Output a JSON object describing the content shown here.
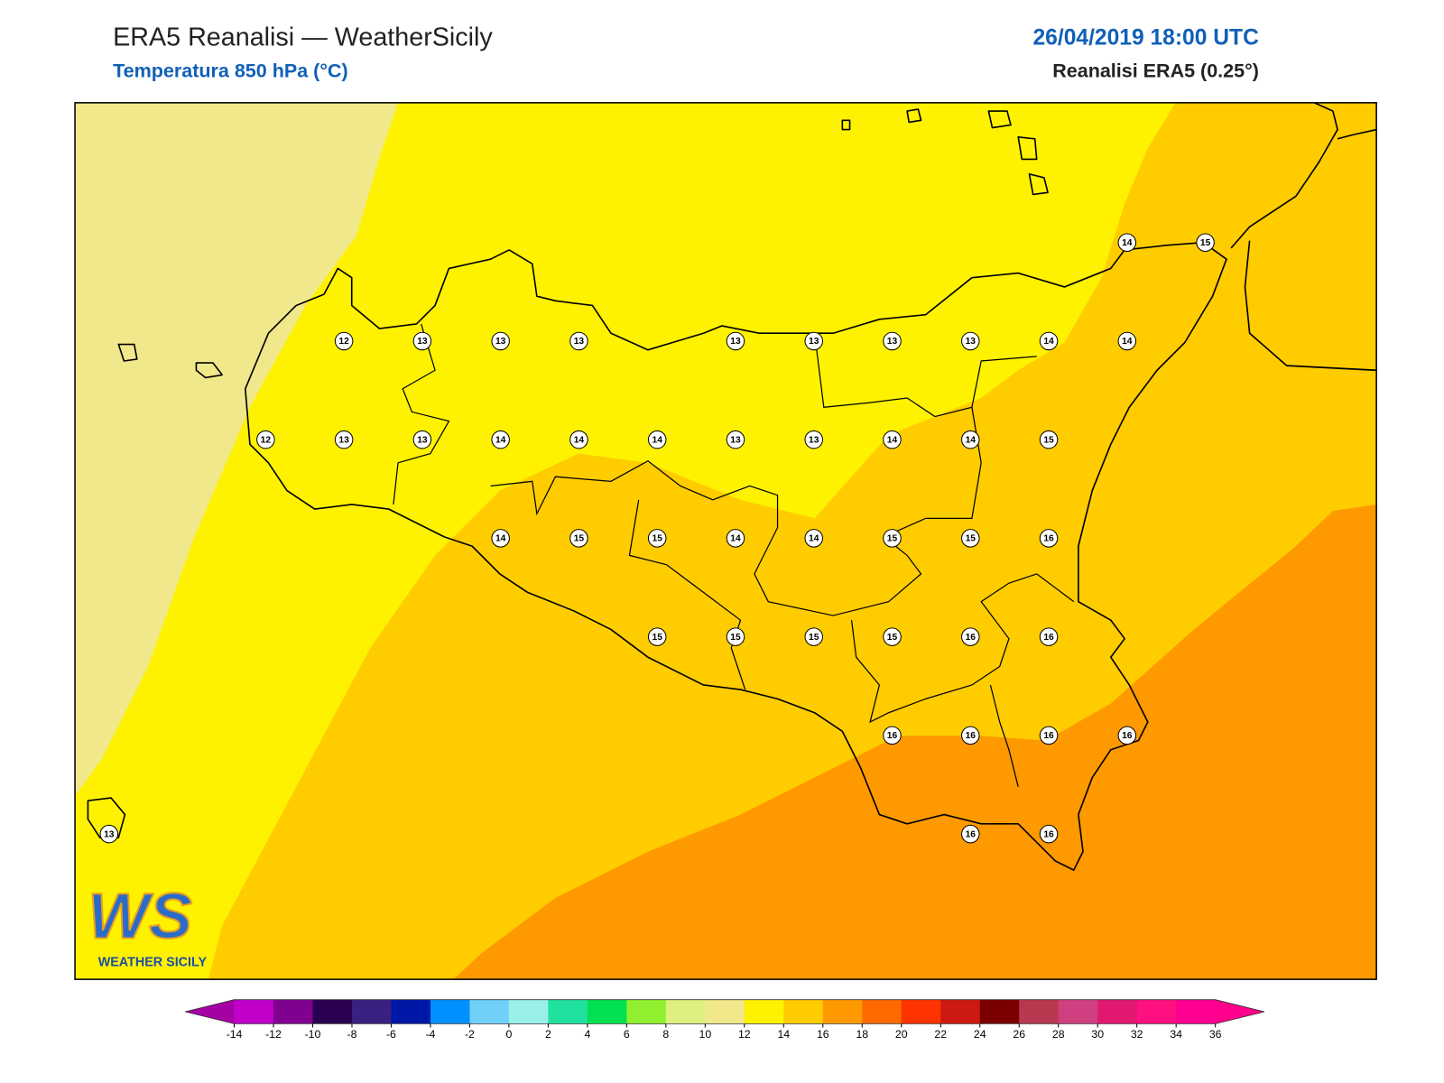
{
  "header": {
    "title": "ERA5 Reanalisi — WeatherSicily",
    "subtitle": "Temperatura 850 hPa (°C)",
    "datetime": "26/04/2019 18:00 UTC",
    "source": "Reanalisi ERA5 (0.25°)"
  },
  "stations": {
    "rows": [
      [
        null,
        null,
        null,
        null,
        null,
        null,
        null,
        null,
        null,
        null,
        null,
        null,
        null,
        14,
        15
      ],
      [
        null,
        null,
        null,
        12,
        13,
        13,
        13,
        null,
        13,
        13,
        13,
        13,
        14,
        14,
        null
      ],
      [
        null,
        null,
        12,
        13,
        13,
        14,
        14,
        14,
        13,
        13,
        14,
        14,
        15,
        null,
        null
      ],
      [
        null,
        null,
        null,
        null,
        null,
        14,
        15,
        15,
        14,
        14,
        15,
        15,
        16,
        null,
        null
      ],
      [
        null,
        null,
        null,
        null,
        null,
        null,
        null,
        15,
        15,
        15,
        15,
        16,
        16,
        null,
        null
      ],
      [
        null,
        null,
        null,
        null,
        null,
        null,
        null,
        null,
        null,
        null,
        16,
        16,
        16,
        16,
        null
      ],
      [
        13,
        null,
        null,
        null,
        null,
        null,
        null,
        null,
        null,
        null,
        null,
        16,
        16,
        null,
        null
      ]
    ]
  },
  "colorbar": {
    "ticks": [
      -14,
      -12,
      -10,
      -8,
      -6,
      -4,
      -2,
      0,
      2,
      4,
      6,
      8,
      10,
      12,
      14,
      16,
      18,
      20,
      22,
      24,
      26,
      28,
      30,
      32,
      34,
      36
    ],
    "colors": [
      "#c000c8",
      "#800090",
      "#2a0050",
      "#3a2080",
      "#0018a8",
      "#0090ff",
      "#70d0f8",
      "#98f0e8",
      "#20e0a0",
      "#00e050",
      "#90f030",
      "#e0f080",
      "#f0e88a",
      "#fff200",
      "#ffcc00",
      "#ff9900",
      "#ff6a00",
      "#ff3300",
      "#cc1a10",
      "#7a0000",
      "#b83850",
      "#d04080",
      "#e01870",
      "#ff1080",
      "#ff0090"
    ],
    "under": "#a400a4",
    "over": "#ff008c"
  },
  "logo": {
    "mark": "WS",
    "text": "WEATHER SICILY"
  }
}
